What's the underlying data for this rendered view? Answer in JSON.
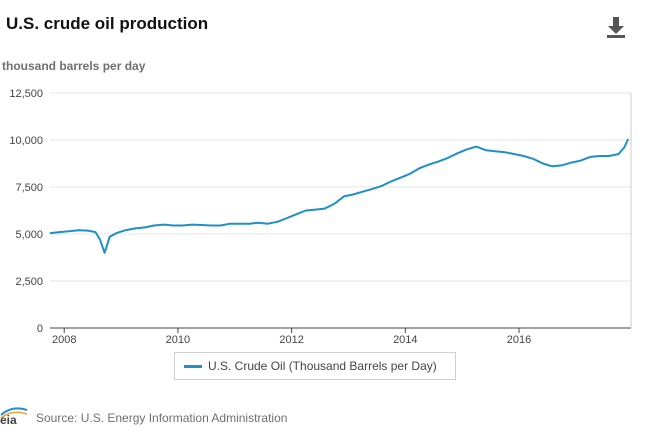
{
  "header": {
    "title": "U.S. crude oil production",
    "unit_label": "thousand barrels per day",
    "download_icon": "download-icon"
  },
  "footer": {
    "logo_text": "eia",
    "source": "Source: U.S. Energy Information Administration"
  },
  "colors": {
    "series": "#1f8fc6",
    "grid": "#e6e6e6",
    "axis": "#444444"
  },
  "chart_data": {
    "type": "line",
    "title": "U.S. crude oil production",
    "ylabel": "thousand barrels per day",
    "xlim": [
      2007.75,
      2017.97
    ],
    "ylim": [
      0,
      12500
    ],
    "y_ticks": [
      0,
      2500,
      5000,
      7500,
      10000,
      12500
    ],
    "y_tick_labels": [
      "0",
      "2,500",
      "5,000",
      "7,500",
      "10,000",
      "12,500"
    ],
    "x_ticks": [
      2008,
      2010,
      2012,
      2014,
      2016
    ],
    "x_tick_labels": [
      "2008",
      "2010",
      "2012",
      "2014",
      "2016"
    ],
    "grid": "horizontal",
    "legend": "bottom-center",
    "series": [
      {
        "name": "U.S. Crude Oil (Thousand Barrels per Day)",
        "x": [
          2007.75,
          2007.92,
          2008.08,
          2008.25,
          2008.42,
          2008.55,
          2008.63,
          2008.71,
          2008.8,
          2008.92,
          2009.08,
          2009.25,
          2009.42,
          2009.58,
          2009.75,
          2009.92,
          2010.08,
          2010.25,
          2010.42,
          2010.58,
          2010.75,
          2010.92,
          2011.08,
          2011.25,
          2011.42,
          2011.58,
          2011.75,
          2011.92,
          2012.08,
          2012.25,
          2012.42,
          2012.58,
          2012.75,
          2012.92,
          2013.08,
          2013.25,
          2013.42,
          2013.58,
          2013.75,
          2013.92,
          2014.08,
          2014.25,
          2014.42,
          2014.58,
          2014.75,
          2014.92,
          2015.08,
          2015.25,
          2015.42,
          2015.58,
          2015.75,
          2015.92,
          2016.08,
          2016.25,
          2016.42,
          2016.58,
          2016.75,
          2016.92,
          2017.08,
          2017.25,
          2017.42,
          2017.58,
          2017.75,
          2017.85,
          2017.92
        ],
        "values": [
          5050,
          5100,
          5150,
          5200,
          5180,
          5100,
          4700,
          4000,
          4850,
          5050,
          5200,
          5300,
          5350,
          5450,
          5500,
          5450,
          5450,
          5500,
          5480,
          5450,
          5450,
          5550,
          5550,
          5550,
          5600,
          5550,
          5650,
          5850,
          6050,
          6250,
          6300,
          6350,
          6600,
          7000,
          7100,
          7250,
          7400,
          7550,
          7800,
          8000,
          8200,
          8500,
          8700,
          8850,
          9050,
          9300,
          9500,
          9650,
          9450,
          9400,
          9350,
          9250,
          9150,
          9000,
          8750,
          8600,
          8650,
          8800,
          8900,
          9100,
          9150,
          9150,
          9250,
          9600,
          10050
        ]
      }
    ]
  }
}
